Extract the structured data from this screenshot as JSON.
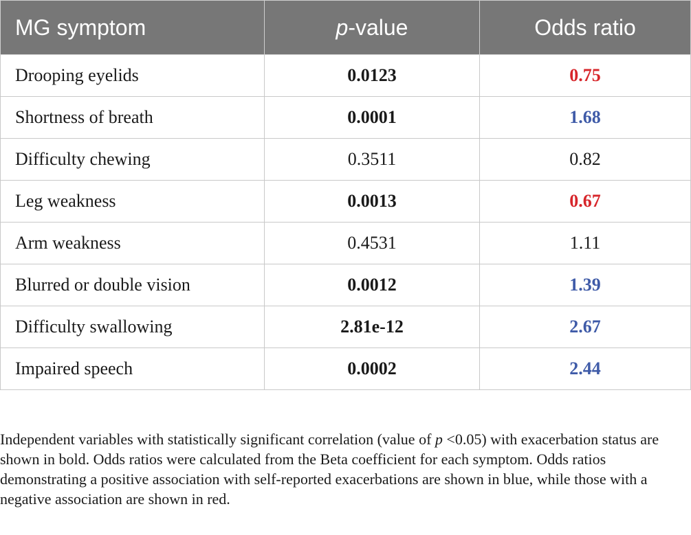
{
  "table": {
    "headers": {
      "symptom": "MG symptom",
      "p_prefix": "p",
      "p_suffix": "-value",
      "odds": "Odds ratio"
    },
    "rows": [
      {
        "symptom": "Drooping eyelids",
        "p": "0.0123",
        "p_bold": true,
        "or": "0.75",
        "or_color": "red"
      },
      {
        "symptom": "Shortness of breath",
        "p": "0.0001",
        "p_bold": true,
        "or": "1.68",
        "or_color": "blue"
      },
      {
        "symptom": "Difficulty chewing",
        "p": "0.3511",
        "p_bold": false,
        "or": "0.82",
        "or_color": "none"
      },
      {
        "symptom": "Leg weakness",
        "p": "0.0013",
        "p_bold": true,
        "or": "0.67",
        "or_color": "red"
      },
      {
        "symptom": "Arm weakness",
        "p": "0.4531",
        "p_bold": false,
        "or": "1.11",
        "or_color": "none"
      },
      {
        "symptom": "Blurred or double vision",
        "p": "0.0012",
        "p_bold": true,
        "or": "1.39",
        "or_color": "blue"
      },
      {
        "symptom": "Difficulty swallowing",
        "p": "2.81e-12",
        "p_bold": true,
        "or": "2.67",
        "or_color": "blue"
      },
      {
        "symptom": "Impaired speech",
        "p": "0.0002",
        "p_bold": true,
        "or": "2.44",
        "or_color": "blue"
      }
    ]
  },
  "footnote": {
    "part1": "Independent variables with statistically significant correlation (value of ",
    "p_italic": "p",
    "part2": " <0.05) with exacerbation status are shown in bold. Odds ratios were calculated from the Beta coefficient for each symptom. Odds ratios demonstrating a positive association with self-reported exacerbations are shown in blue, while those with a negative association are shown in red."
  },
  "colors": {
    "header_bg": "#777777",
    "positive_blue": "#3f5ba8",
    "negative_red": "#d7262b"
  }
}
